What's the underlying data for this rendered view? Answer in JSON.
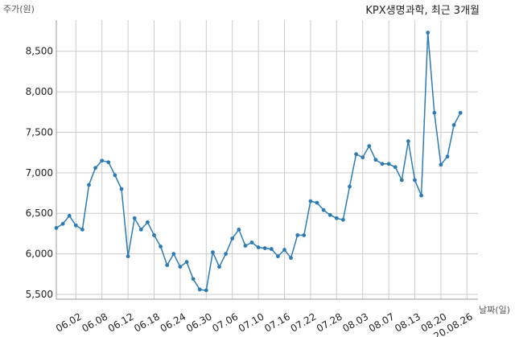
{
  "chart_data": {
    "type": "line",
    "title": "KPX생명과학, 최근 3개월",
    "ylabel": "주가(원)",
    "xlabel": "날짜(일)",
    "ylim": [
      5500,
      8750
    ],
    "yticks": [
      5500,
      6000,
      6500,
      7000,
      7500,
      8000,
      8500
    ],
    "ytick_labels": [
      "5,500",
      "6,000",
      "6,500",
      "7,000",
      "7,500",
      "8,000",
      "8,500"
    ],
    "grid": true,
    "line_color": "#2e7bb4",
    "x_tick_labels": [
      {
        "label": "06.02",
        "index": 3
      },
      {
        "label": "06.08",
        "index": 7
      },
      {
        "label": "06.12",
        "index": 11
      },
      {
        "label": "06.18",
        "index": 15
      },
      {
        "label": "06.24",
        "index": 19
      },
      {
        "label": "06.30",
        "index": 23
      },
      {
        "label": "07.06",
        "index": 27
      },
      {
        "label": "07.10",
        "index": 31
      },
      {
        "label": "07.16",
        "index": 35
      },
      {
        "label": "07.22",
        "index": 39
      },
      {
        "label": "07.28",
        "index": 43
      },
      {
        "label": "08.03",
        "index": 47
      },
      {
        "label": "08.07",
        "index": 51
      },
      {
        "label": "08.13",
        "index": 55
      },
      {
        "label": "08.20",
        "index": 59
      },
      {
        "label": "20.08.26",
        "index": 63
      }
    ],
    "values": [
      6320,
      6370,
      6470,
      6350,
      6300,
      6850,
      7060,
      7150,
      7130,
      6970,
      6800,
      5970,
      6440,
      6300,
      6390,
      6230,
      6090,
      5860,
      6000,
      5840,
      5900,
      5690,
      5560,
      5550,
      6020,
      5840,
      6000,
      6190,
      6300,
      6100,
      6140,
      6080,
      6070,
      6060,
      5970,
      6050,
      5950,
      6230,
      6230,
      6650,
      6630,
      6540,
      6480,
      6440,
      6420,
      6830,
      7230,
      7190,
      7330,
      7160,
      7110,
      7110,
      7070,
      6910,
      7390,
      6910,
      6720,
      8730,
      7740,
      7100,
      7200,
      7590,
      7740
    ]
  }
}
